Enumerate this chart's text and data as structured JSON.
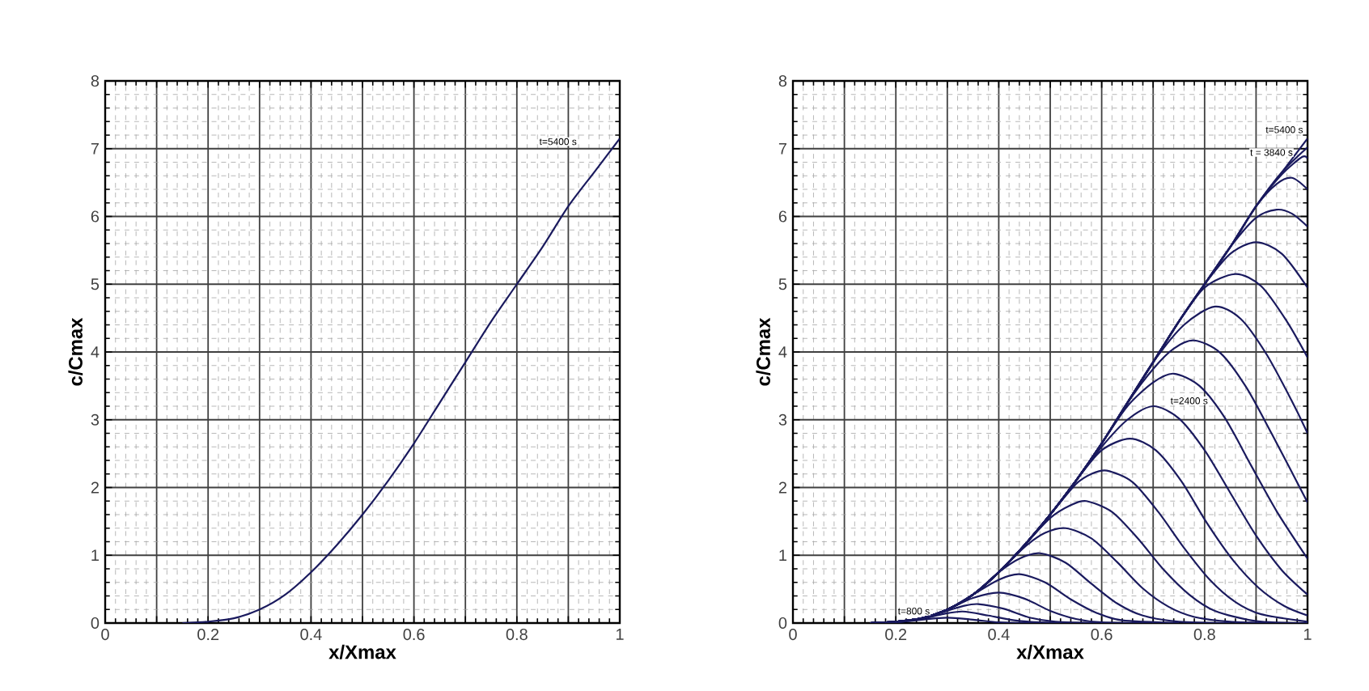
{
  "chart_data": [
    {
      "type": "line",
      "xlabel": "x/Xmax",
      "ylabel": "c/Cmax",
      "xlim": [
        0,
        1
      ],
      "ylim": [
        0,
        8
      ],
      "grid": true,
      "xticks": [
        0,
        {
          "value": 0.1,
          "label": null
        },
        0.2,
        {
          "value": 0.3,
          "label": null
        },
        0.4,
        {
          "value": 0.5,
          "label": null
        },
        0.6,
        {
          "value": 0.7,
          "label": null
        },
        0.8,
        {
          "value": 0.9,
          "label": null
        },
        1
      ],
      "yticks": [
        0,
        1,
        2,
        3,
        4,
        5,
        6,
        7,
        8
      ],
      "annotations": [
        "t=5400 s"
      ],
      "series": [
        {
          "color": "#1a1a5e",
          "x": [
            0.15,
            0.2,
            0.25,
            0.3,
            0.35,
            0.4,
            0.45,
            0.5,
            0.55,
            0.6,
            0.65,
            0.7,
            0.75,
            0.8,
            0.85,
            0.9,
            0.95,
            1.0
          ],
          "values": [
            0,
            0.02,
            0.07,
            0.2,
            0.42,
            0.75,
            1.15,
            1.6,
            2.1,
            2.65,
            3.25,
            3.85,
            4.45,
            5.0,
            5.55,
            6.15,
            6.65,
            7.15
          ]
        }
      ]
    },
    {
      "type": "line",
      "xlabel": "x/Xmax",
      "ylabel": "c/Cmax",
      "xlim": [
        0,
        1
      ],
      "ylim": [
        0,
        8
      ],
      "grid": true,
      "xticks": [
        0,
        {
          "value": 0.1,
          "label": null
        },
        0.2,
        {
          "value": 0.3,
          "label": null
        },
        0.4,
        {
          "value": 0.5,
          "label": null
        },
        0.6,
        {
          "value": 0.7,
          "label": null
        },
        0.8,
        {
          "value": 0.9,
          "label": null
        },
        1
      ],
      "yticks": [
        0,
        1,
        2,
        3,
        4,
        5,
        6,
        7,
        8
      ],
      "annotations": [
        "t=800 s",
        "t=2400 s",
        "t = 3840 s",
        "t=5400 s"
      ],
      "series": [
        {
          "color": "#1a1a5e",
          "x": [
            0.2,
            0.25,
            0.3,
            0.35,
            0.4,
            0.45,
            0.5
          ],
          "values": [
            0.01,
            0.05,
            0.08,
            0.05,
            0.01,
            0,
            0
          ]
        },
        {
          "color": "#1a1a5e",
          "x": [
            0.15,
            0.2,
            0.25,
            0.29,
            0.33,
            0.38,
            0.43,
            0.48,
            0.55
          ],
          "values": [
            0,
            0.01,
            0.06,
            0.13,
            0.17,
            0.11,
            0.04,
            0.01,
            0
          ]
        },
        {
          "color": "#1a1a5e",
          "x": [
            0.15,
            0.2,
            0.25,
            0.3,
            0.33,
            0.36,
            0.41,
            0.46,
            0.51,
            0.6
          ],
          "values": [
            0,
            0.02,
            0.07,
            0.18,
            0.25,
            0.28,
            0.21,
            0.08,
            0.02,
            0
          ]
        },
        {
          "color": "#1a1a5e",
          "x": [
            0.15,
            0.2,
            0.25,
            0.3,
            0.35,
            0.4,
            0.45,
            0.5,
            0.55,
            0.6,
            0.7
          ],
          "values": [
            0,
            0.02,
            0.07,
            0.2,
            0.37,
            0.45,
            0.36,
            0.18,
            0.06,
            0.01,
            0
          ]
        },
        {
          "color": "#1a1a5e",
          "x": [
            0.15,
            0.2,
            0.25,
            0.3,
            0.35,
            0.4,
            0.44,
            0.49,
            0.54,
            0.59,
            0.64,
            0.75
          ],
          "values": [
            0,
            0.02,
            0.07,
            0.2,
            0.42,
            0.64,
            0.72,
            0.6,
            0.35,
            0.15,
            0.04,
            0
          ]
        },
        {
          "color": "#1a1a5e",
          "x": [
            0.15,
            0.2,
            0.25,
            0.3,
            0.35,
            0.4,
            0.44,
            0.48,
            0.53,
            0.58,
            0.63,
            0.68,
            0.75,
            0.85
          ],
          "values": [
            0,
            0.02,
            0.07,
            0.2,
            0.42,
            0.75,
            0.95,
            1.03,
            0.89,
            0.58,
            0.29,
            0.11,
            0.02,
            0
          ]
        },
        {
          "color": "#1a1a5e",
          "x": [
            0.15,
            0.2,
            0.25,
            0.3,
            0.35,
            0.4,
            0.45,
            0.49,
            0.53,
            0.58,
            0.63,
            0.68,
            0.73,
            0.78,
            0.85,
            0.95
          ],
          "values": [
            0,
            0.02,
            0.07,
            0.2,
            0.42,
            0.75,
            1.12,
            1.33,
            1.4,
            1.25,
            0.9,
            0.51,
            0.24,
            0.09,
            0.02,
            0
          ]
        },
        {
          "color": "#1a1a5e",
          "x": [
            0.2,
            0.25,
            0.3,
            0.35,
            0.4,
            0.45,
            0.5,
            0.54,
            0.57,
            0.62,
            0.67,
            0.72,
            0.77,
            0.82,
            0.9,
            1.0
          ],
          "values": [
            0.02,
            0.07,
            0.2,
            0.42,
            0.75,
            1.15,
            1.55,
            1.74,
            1.8,
            1.64,
            1.25,
            0.79,
            0.42,
            0.18,
            0.03,
            0
          ]
        },
        {
          "color": "#1a1a5e",
          "x": [
            0.15,
            0.2,
            0.25,
            0.3,
            0.35,
            0.4,
            0.45,
            0.5,
            0.55,
            0.58,
            0.61,
            0.66,
            0.71,
            0.76,
            0.81,
            0.86,
            0.91,
            1.0
          ],
          "values": [
            0,
            0.02,
            0.07,
            0.2,
            0.42,
            0.75,
            1.15,
            1.6,
            2.05,
            2.2,
            2.25,
            2.08,
            1.64,
            1.11,
            0.64,
            0.31,
            0.13,
            0.02
          ]
        },
        {
          "color": "#1a1a5e",
          "x": [
            0.15,
            0.2,
            0.25,
            0.3,
            0.35,
            0.4,
            0.45,
            0.5,
            0.55,
            0.6,
            0.655,
            0.705,
            0.755,
            0.805,
            0.855,
            0.905,
            0.955,
            1.0
          ],
          "values": [
            0,
            0.02,
            0.07,
            0.2,
            0.42,
            0.75,
            1.15,
            1.6,
            2.1,
            2.55,
            2.72,
            2.55,
            2.09,
            1.47,
            0.93,
            0.52,
            0.25,
            0.11
          ]
        },
        {
          "color": "#1a1a5e",
          "x": [
            0.15,
            0.2,
            0.25,
            0.3,
            0.35,
            0.4,
            0.45,
            0.5,
            0.55,
            0.6,
            0.65,
            0.7,
            0.75,
            0.8,
            0.85,
            0.9,
            0.95,
            1.0
          ],
          "values": [
            0,
            0.02,
            0.07,
            0.2,
            0.42,
            0.75,
            1.15,
            1.6,
            2.1,
            2.6,
            3.0,
            3.2,
            3.02,
            2.55,
            1.92,
            1.29,
            0.78,
            0.42
          ]
        },
        {
          "color": "#1a1a5e",
          "x": [
            0.15,
            0.2,
            0.25,
            0.3,
            0.35,
            0.4,
            0.45,
            0.5,
            0.55,
            0.6,
            0.65,
            0.7,
            0.74,
            0.79,
            0.84,
            0.89,
            0.94,
            1.0
          ],
          "values": [
            0,
            0.02,
            0.07,
            0.2,
            0.42,
            0.75,
            1.15,
            1.6,
            2.1,
            2.65,
            3.2,
            3.55,
            3.68,
            3.5,
            3.02,
            2.33,
            1.65,
            0.95
          ]
        },
        {
          "color": "#1a1a5e",
          "x": [
            0.15,
            0.2,
            0.25,
            0.3,
            0.35,
            0.4,
            0.45,
            0.5,
            0.55,
            0.6,
            0.65,
            0.7,
            0.74,
            0.78,
            0.83,
            0.88,
            0.93,
            1.0
          ],
          "values": [
            0,
            0.02,
            0.07,
            0.2,
            0.42,
            0.75,
            1.15,
            1.6,
            2.1,
            2.65,
            3.25,
            3.75,
            4.05,
            4.17,
            3.99,
            3.49,
            2.8,
            1.78
          ]
        },
        {
          "color": "#1a1a5e",
          "x": [
            0.15,
            0.2,
            0.25,
            0.3,
            0.35,
            0.4,
            0.45,
            0.5,
            0.55,
            0.6,
            0.65,
            0.7,
            0.76,
            0.82,
            0.87,
            0.92,
            0.97,
            1.0
          ],
          "values": [
            0,
            0.02,
            0.07,
            0.2,
            0.42,
            0.75,
            1.15,
            1.6,
            2.1,
            2.65,
            3.25,
            3.85,
            4.4,
            4.67,
            4.49,
            3.97,
            3.27,
            2.8
          ]
        },
        {
          "color": "#1a1a5e",
          "x": [
            0.15,
            0.2,
            0.25,
            0.3,
            0.35,
            0.4,
            0.45,
            0.5,
            0.55,
            0.6,
            0.65,
            0.7,
            0.75,
            0.8,
            0.86,
            0.91,
            0.96,
            1.0
          ],
          "values": [
            0,
            0.02,
            0.07,
            0.2,
            0.42,
            0.75,
            1.15,
            1.6,
            2.1,
            2.65,
            3.25,
            3.85,
            4.45,
            4.95,
            5.15,
            4.97,
            4.45,
            3.92
          ]
        },
        {
          "color": "#1a1a5e",
          "x": [
            0.15,
            0.2,
            0.25,
            0.3,
            0.35,
            0.4,
            0.45,
            0.5,
            0.55,
            0.6,
            0.65,
            0.7,
            0.75,
            0.8,
            0.85,
            0.9,
            0.95,
            1.0
          ],
          "values": [
            0,
            0.02,
            0.07,
            0.2,
            0.42,
            0.75,
            1.15,
            1.6,
            2.1,
            2.65,
            3.25,
            3.85,
            4.45,
            5.0,
            5.45,
            5.62,
            5.45,
            4.95
          ]
        },
        {
          "color": "#1a1a5e",
          "x": [
            0.15,
            0.2,
            0.25,
            0.3,
            0.35,
            0.4,
            0.45,
            0.5,
            0.55,
            0.6,
            0.65,
            0.7,
            0.75,
            0.8,
            0.85,
            0.9,
            0.94,
            0.97,
            1.0
          ],
          "values": [
            0,
            0.02,
            0.07,
            0.2,
            0.42,
            0.75,
            1.15,
            1.6,
            2.1,
            2.65,
            3.25,
            3.85,
            4.45,
            5.0,
            5.55,
            5.98,
            6.1,
            6.04,
            5.85
          ]
        },
        {
          "color": "#1a1a5e",
          "x": [
            0.15,
            0.2,
            0.25,
            0.3,
            0.35,
            0.4,
            0.45,
            0.5,
            0.55,
            0.6,
            0.65,
            0.7,
            0.75,
            0.8,
            0.85,
            0.9,
            0.94,
            0.97,
            1.0
          ],
          "values": [
            0,
            0.02,
            0.07,
            0.2,
            0.42,
            0.75,
            1.15,
            1.6,
            2.1,
            2.65,
            3.25,
            3.85,
            4.45,
            5.0,
            5.55,
            6.15,
            6.48,
            6.57,
            6.4
          ]
        },
        {
          "color": "#1a1a5e",
          "x": [
            0.15,
            0.2,
            0.25,
            0.3,
            0.35,
            0.4,
            0.45,
            0.5,
            0.55,
            0.6,
            0.65,
            0.7,
            0.75,
            0.8,
            0.85,
            0.9,
            0.95,
            0.99,
            1.0
          ],
          "values": [
            0,
            0.02,
            0.07,
            0.2,
            0.42,
            0.75,
            1.15,
            1.6,
            2.1,
            2.65,
            3.25,
            3.85,
            4.45,
            5.0,
            5.55,
            6.15,
            6.62,
            6.88,
            6.85
          ]
        },
        {
          "color": "#1a1a5e",
          "x": [
            0.15,
            0.2,
            0.25,
            0.3,
            0.35,
            0.4,
            0.45,
            0.5,
            0.55,
            0.6,
            0.65,
            0.7,
            0.75,
            0.8,
            0.85,
            0.9,
            0.95,
            1.0
          ],
          "values": [
            0,
            0.02,
            0.07,
            0.2,
            0.42,
            0.75,
            1.15,
            1.6,
            2.1,
            2.65,
            3.25,
            3.85,
            4.45,
            5.0,
            5.55,
            6.15,
            6.65,
            7.02
          ]
        },
        {
          "color": "#1a1a5e",
          "x": [
            0.15,
            0.2,
            0.25,
            0.3,
            0.35,
            0.4,
            0.45,
            0.5,
            0.55,
            0.6,
            0.65,
            0.7,
            0.75,
            0.8,
            0.85,
            0.9,
            0.95,
            1.0
          ],
          "values": [
            0,
            0.02,
            0.07,
            0.2,
            0.42,
            0.75,
            1.15,
            1.6,
            2.1,
            2.65,
            3.25,
            3.85,
            4.45,
            5.0,
            5.55,
            6.15,
            6.65,
            7.15
          ]
        }
      ]
    }
  ]
}
